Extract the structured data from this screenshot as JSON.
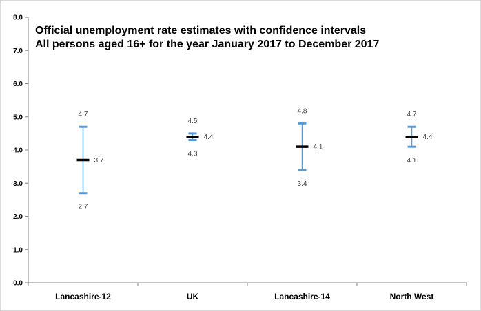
{
  "chart_data": {
    "type": "error-bar",
    "title_lines": [
      "Official unemployment rate estimates with confidence intervals",
      "All persons aged 16+ for the year January 2017 to December 2017"
    ],
    "xlabel": "",
    "ylabel": "",
    "ylim": [
      0,
      8
    ],
    "yticks": [
      "0.0",
      "1.0",
      "2.0",
      "3.0",
      "4.0",
      "5.0",
      "6.0",
      "7.0",
      "8.0"
    ],
    "grid": false,
    "categories": [
      "Lancashire-12",
      "UK",
      "Lancashire-14",
      "North West"
    ],
    "series": [
      {
        "estimate": [
          3.7,
          4.4,
          4.1,
          4.4
        ],
        "upper": [
          4.7,
          4.5,
          4.8,
          4.7
        ],
        "lower": [
          2.7,
          4.3,
          3.4,
          4.1
        ],
        "labels_estimate": [
          "3.7",
          "4.4",
          "4.1",
          "4.4"
        ],
        "labels_upper": [
          "4.7",
          "4.5",
          "4.8",
          "4.7"
        ],
        "labels_lower": [
          "2.7",
          "4.3",
          "3.4",
          "4.1"
        ]
      }
    ],
    "colors": {
      "interval": "#5b9bd5",
      "estimate": "#000000",
      "axis": "#808080"
    }
  }
}
